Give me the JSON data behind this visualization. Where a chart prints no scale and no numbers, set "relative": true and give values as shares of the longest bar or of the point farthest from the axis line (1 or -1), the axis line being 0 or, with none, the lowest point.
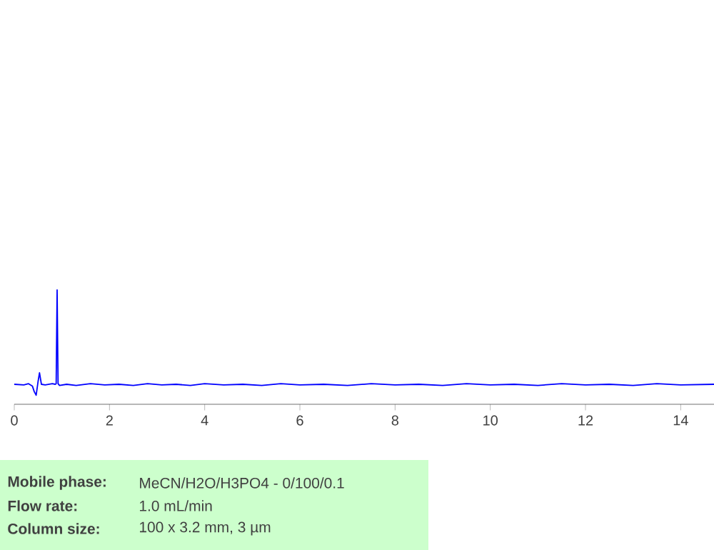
{
  "chart_data": {
    "type": "line",
    "relative": true,
    "xlim": [
      0,
      14.7
    ],
    "xticks": [
      0,
      2,
      4,
      6,
      8,
      10,
      12,
      14
    ],
    "x": [
      0,
      0.2,
      0.3,
      0.38,
      0.42,
      0.46,
      0.5,
      0.53,
      0.57,
      0.65,
      0.8,
      0.86,
      0.88,
      0.9,
      0.92,
      0.95,
      1.1,
      1.3,
      1.6,
      1.9,
      2.2,
      2.5,
      2.8,
      3.1,
      3.4,
      3.7,
      4.0,
      4.4,
      4.8,
      5.2,
      5.6,
      6.0,
      6.5,
      7.0,
      7.5,
      8.0,
      8.5,
      9.0,
      9.5,
      10.0,
      10.5,
      11.0,
      11.5,
      12.0,
      12.5,
      13.0,
      13.5,
      14.0,
      14.7
    ],
    "series": [
      {
        "color": "#0000ff",
        "values": [
          0.175,
          0.17,
          0.18,
          0.16,
          0.11,
          0.08,
          0.2,
          0.275,
          0.175,
          0.17,
          0.18,
          0.175,
          0.18,
          1.0,
          0.18,
          0.165,
          0.175,
          0.165,
          0.18,
          0.17,
          0.175,
          0.165,
          0.18,
          0.17,
          0.175,
          0.165,
          0.18,
          0.17,
          0.175,
          0.165,
          0.18,
          0.17,
          0.175,
          0.165,
          0.18,
          0.17,
          0.175,
          0.165,
          0.18,
          0.17,
          0.175,
          0.165,
          0.18,
          0.17,
          0.175,
          0.165,
          0.18,
          0.17,
          0.175
        ]
      }
    ],
    "annotations": [
      "Mobile phase:",
      "MeCN/H2O/H3PO4 - 0/100/0.1",
      "Flow rate:",
      "1.0 mL/min",
      "Column size:",
      "100 x 3.2 mm, 3 µm"
    ]
  }
}
